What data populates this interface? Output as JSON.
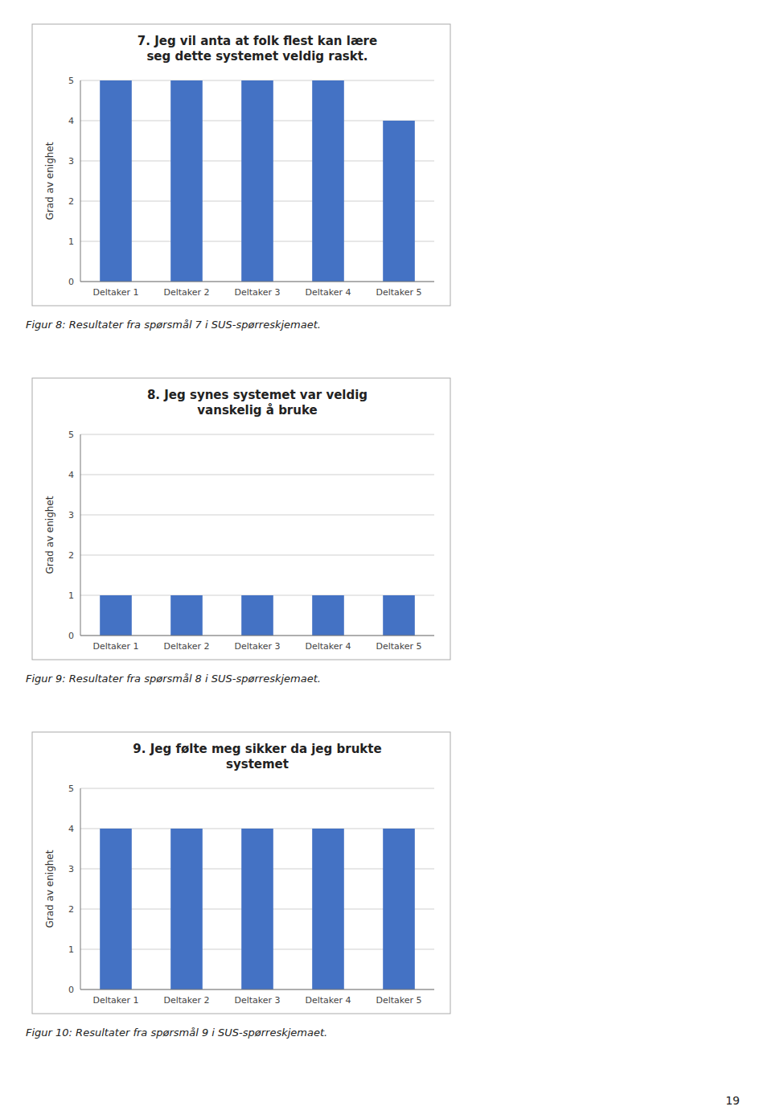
{
  "chart_data": [
    {
      "type": "bar",
      "title": "7. Jeg vil anta at folk flest kan lære\nseg dette systemet veldig raskt.",
      "categories": [
        "Deltaker 1",
        "Deltaker 2",
        "Deltaker 3",
        "Deltaker 4",
        "Deltaker 5"
      ],
      "values": [
        5,
        5,
        5,
        5,
        4
      ],
      "color": "#4472C4",
      "ylabel": "Grad av enighet",
      "ylim": [
        0,
        5
      ],
      "yticks": [
        0,
        1,
        2,
        3,
        4,
        5
      ],
      "grid": true,
      "caption": "Figur 8: Resultater fra spørsmål 7 i SUS-spørreskjemaet."
    },
    {
      "type": "bar",
      "title": "8. Jeg synes systemet var veldig\nvanskelig å bruke",
      "categories": [
        "Deltaker 1",
        "Deltaker 2",
        "Deltaker 3",
        "Deltaker 4",
        "Deltaker 5"
      ],
      "values": [
        1,
        1,
        1,
        1,
        1
      ],
      "color": "#4472C4",
      "ylabel": "Grad av enighet",
      "ylim": [
        0,
        5
      ],
      "yticks": [
        0,
        1,
        2,
        3,
        4,
        5
      ],
      "grid": true,
      "caption": "Figur 9: Resultater fra spørsmål 8 i SUS-spørreskjemaet."
    },
    {
      "type": "bar",
      "title": "9. Jeg følte meg sikker da jeg brukte\nsystemet",
      "categories": [
        "Deltaker 1",
        "Deltaker 2",
        "Deltaker 3",
        "Deltaker 4",
        "Deltaker 5"
      ],
      "values": [
        4,
        4,
        4,
        4,
        4
      ],
      "color": "#4472C4",
      "ylabel": "Grad av enighet",
      "ylim": [
        0,
        5
      ],
      "yticks": [
        0,
        1,
        2,
        3,
        4,
        5
      ],
      "grid": true,
      "caption": "Figur 10: Resultater fra spørsmål 9 i SUS-spørreskjemaet."
    }
  ],
  "page_number": "19"
}
